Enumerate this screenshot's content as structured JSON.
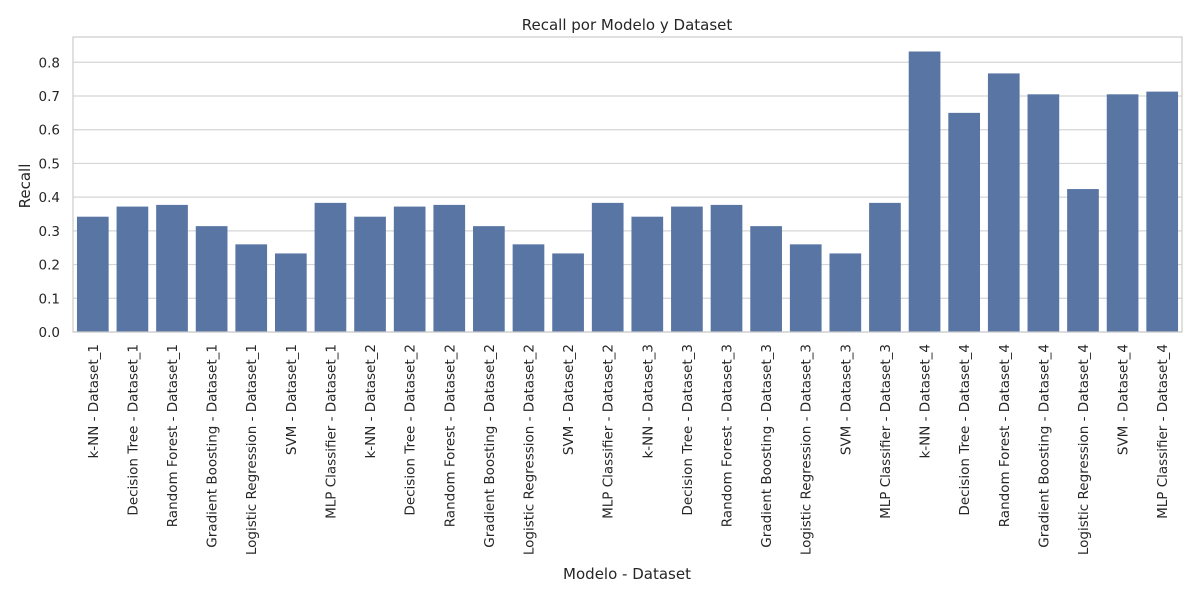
{
  "chart_data": {
    "type": "bar",
    "title": "Recall por Modelo y Dataset",
    "xlabel": "Modelo - Dataset",
    "ylabel": "Recall",
    "ylim": [
      0,
      0.875
    ],
    "yticks": [
      0.0,
      0.1,
      0.2,
      0.3,
      0.4,
      0.5,
      0.6,
      0.7,
      0.8
    ],
    "yticks_labels": [
      "0.0",
      "0.1",
      "0.2",
      "0.3",
      "0.4",
      "0.5",
      "0.6",
      "0.7",
      "0.8"
    ],
    "grid": "horizontal",
    "bar_color": "#5875a4",
    "categories": [
      "k-NN - Dataset_1",
      "Decision Tree - Dataset_1",
      "Random Forest - Dataset_1",
      "Gradient Boosting - Dataset_1",
      "Logistic Regression - Dataset_1",
      "SVM - Dataset_1",
      "MLP Classifier - Dataset_1",
      "k-NN - Dataset_2",
      "Decision Tree - Dataset_2",
      "Random Forest - Dataset_2",
      "Gradient Boosting - Dataset_2",
      "Logistic Regression - Dataset_2",
      "SVM - Dataset_2",
      "MLP Classifier - Dataset_2",
      "k-NN - Dataset_3",
      "Decision Tree - Dataset_3",
      "Random Forest - Dataset_3",
      "Gradient Boosting - Dataset_3",
      "Logistic Regression - Dataset_3",
      "SVM - Dataset_3",
      "MLP Classifier - Dataset_3",
      "k-NN - Dataset_4",
      "Decision Tree - Dataset_4",
      "Random Forest - Dataset_4",
      "Gradient Boosting - Dataset_4",
      "Logistic Regression - Dataset_4",
      "SVM - Dataset_4",
      "MLP Classifier - Dataset_4"
    ],
    "values": [
      0.342,
      0.372,
      0.377,
      0.314,
      0.26,
      0.233,
      0.383,
      0.342,
      0.372,
      0.377,
      0.314,
      0.26,
      0.233,
      0.383,
      0.342,
      0.372,
      0.377,
      0.314,
      0.26,
      0.233,
      0.383,
      0.832,
      0.65,
      0.767,
      0.705,
      0.424,
      0.705,
      0.713
    ]
  }
}
